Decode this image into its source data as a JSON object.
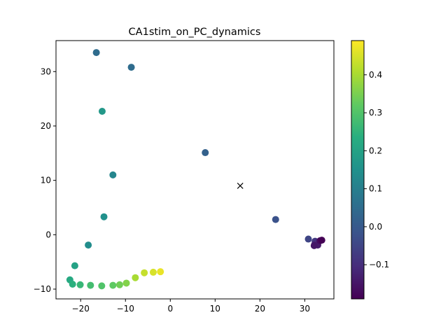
{
  "chart_data": {
    "type": "scatter",
    "title": "CA1stim_on_PC_dynamics",
    "xlabel": "",
    "ylabel": "",
    "xlim": [
      -25.5,
      36.5
    ],
    "ylim": [
      -11.8,
      35.7
    ],
    "x_ticks": [
      -20,
      -10,
      0,
      10,
      20,
      30
    ],
    "y_ticks": [
      -10,
      0,
      10,
      20,
      30
    ],
    "x_tick_labels": [
      "−20",
      "−10",
      "0",
      "10",
      "20",
      "30"
    ],
    "y_tick_labels": [
      "−10",
      "0",
      "10",
      "20",
      "30"
    ],
    "grid": false,
    "colormap": "viridis",
    "colorbar": {
      "range": [
        -0.19,
        0.49
      ],
      "ticks": [
        -0.1,
        0.0,
        0.1,
        0.2,
        0.3,
        0.4
      ],
      "tick_labels": [
        "−0.1",
        "0.0",
        "0.1",
        "0.2",
        "0.3",
        "0.4"
      ]
    },
    "points": [
      {
        "x": -16.5,
        "y": 33.5,
        "c": 0.05
      },
      {
        "x": -8.7,
        "y": 30.8,
        "c": 0.05
      },
      {
        "x": -15.2,
        "y": 22.7,
        "c": 0.17
      },
      {
        "x": 7.8,
        "y": 15.1,
        "c": 0.02
      },
      {
        "x": -12.8,
        "y": 11.0,
        "c": 0.12
      },
      {
        "x": -14.8,
        "y": 3.3,
        "c": 0.15
      },
      {
        "x": 23.5,
        "y": 2.8,
        "c": -0.02
      },
      {
        "x": -18.3,
        "y": -1.9,
        "c": 0.14
      },
      {
        "x": -21.3,
        "y": -5.7,
        "c": 0.2
      },
      {
        "x": -22.4,
        "y": -8.3,
        "c": 0.22
      },
      {
        "x": -21.8,
        "y": -9.1,
        "c": 0.24
      },
      {
        "x": -20.1,
        "y": -9.2,
        "c": 0.26
      },
      {
        "x": -17.8,
        "y": -9.3,
        "c": 0.28
      },
      {
        "x": -15.3,
        "y": -9.4,
        "c": 0.3
      },
      {
        "x": -12.8,
        "y": -9.3,
        "c": 0.32
      },
      {
        "x": -11.3,
        "y": -9.2,
        "c": 0.34
      },
      {
        "x": -9.8,
        "y": -8.9,
        "c": 0.36
      },
      {
        "x": -7.8,
        "y": -7.9,
        "c": 0.4
      },
      {
        "x": -5.8,
        "y": -7.0,
        "c": 0.43
      },
      {
        "x": -3.8,
        "y": -6.9,
        "c": 0.45
      },
      {
        "x": -2.2,
        "y": -6.8,
        "c": 0.47
      },
      {
        "x": 30.8,
        "y": -0.8,
        "c": -0.05
      },
      {
        "x": 32.3,
        "y": -1.2,
        "c": -0.08
      },
      {
        "x": 32.8,
        "y": -1.4,
        "c": -0.1
      },
      {
        "x": 32.2,
        "y": -1.8,
        "c": -0.12
      },
      {
        "x": 32.9,
        "y": -1.9,
        "c": -0.14
      },
      {
        "x": 32.1,
        "y": -2.0,
        "c": -0.15
      },
      {
        "x": 33.4,
        "y": -1.1,
        "c": -0.17
      },
      {
        "x": 33.8,
        "y": -1.0,
        "c": -0.19
      }
    ],
    "marker": {
      "x": 15.6,
      "y": 9.0,
      "symbol": "x"
    }
  }
}
